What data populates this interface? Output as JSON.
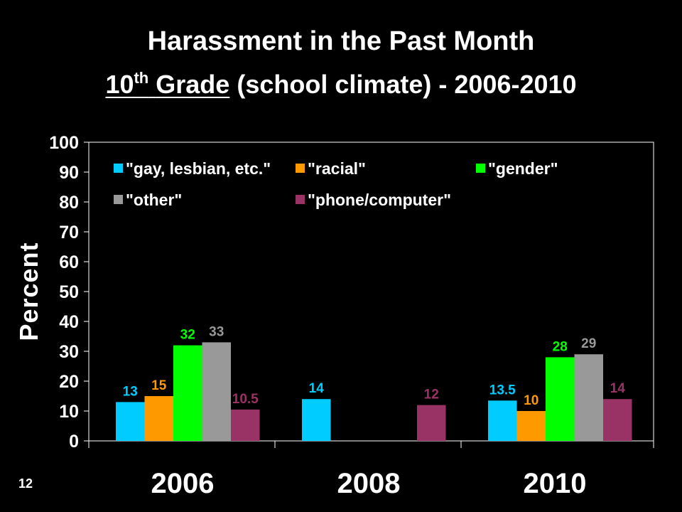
{
  "slide": {
    "title": "Harassment in the Past Month",
    "subtitle_grade_number": "10",
    "subtitle_grade_sup": "th",
    "subtitle_grade_word": "Grade",
    "subtitle_rest": "(school climate) - 2006-2010",
    "slide_number": "12"
  },
  "chart_data": {
    "type": "bar",
    "ylabel": "Percent",
    "ylim": [
      0,
      100
    ],
    "yticks": [
      "0",
      "10",
      "20",
      "30",
      "40",
      "50",
      "60",
      "70",
      "80",
      "90",
      "100"
    ],
    "categories": [
      "2006",
      "2008",
      "2010"
    ],
    "legend_position": "top",
    "series": [
      {
        "name": "\"gay, lesbian, etc.\"",
        "color": "#00ccff",
        "values": [
          13,
          14,
          13.5
        ],
        "labels": [
          "13",
          "14",
          "13.5"
        ]
      },
      {
        "name": "\"racial\"",
        "color": "#ff9900",
        "values": [
          15,
          null,
          10
        ],
        "labels": [
          "15",
          "",
          "10"
        ]
      },
      {
        "name": "\"gender\"",
        "color": "#00ff00",
        "values": [
          32,
          null,
          28
        ],
        "labels": [
          "32",
          "",
          "28"
        ]
      },
      {
        "name": "\"other\"",
        "color": "#999999",
        "values": [
          33,
          null,
          29
        ],
        "labels": [
          "33",
          "",
          "29"
        ]
      },
      {
        "name": "\"phone/computer\"",
        "color": "#993366",
        "values": [
          10.5,
          12,
          14
        ],
        "labels": [
          "10.5",
          "12",
          "14"
        ]
      }
    ]
  }
}
